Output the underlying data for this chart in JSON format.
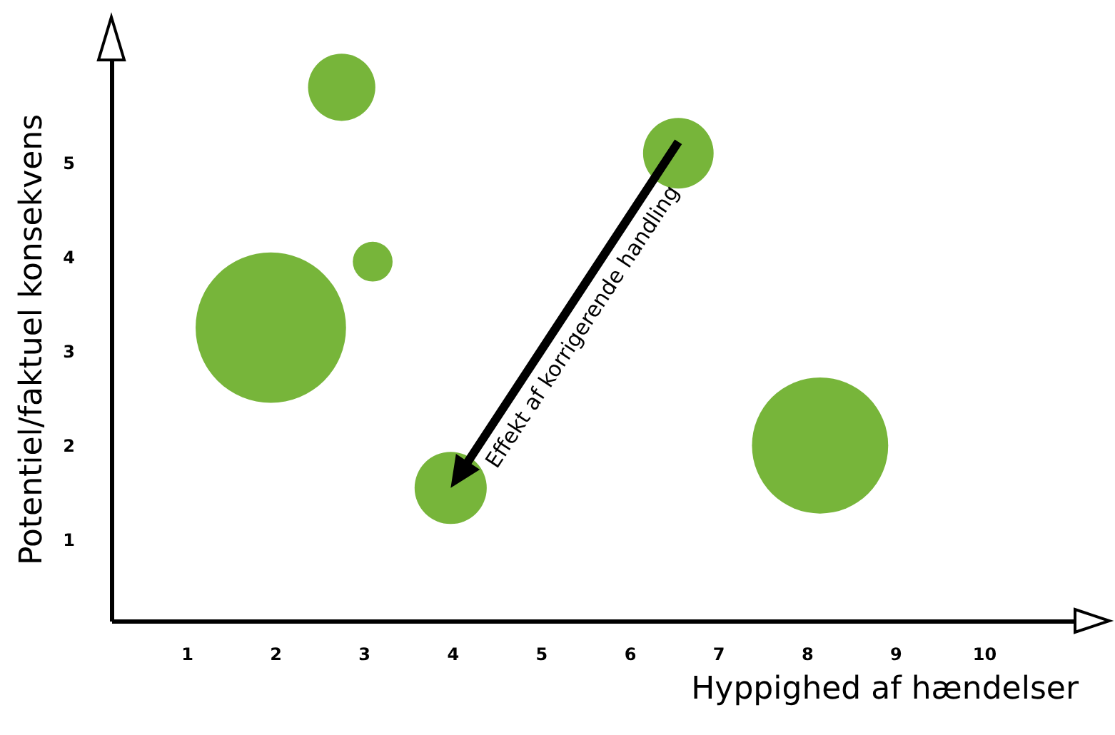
{
  "chart_data": {
    "type": "bubble",
    "xlabel": "Hyppighed af hændelser",
    "ylabel": "Potentiel/faktuel konsekvens",
    "x": [
      2.75,
      6.55,
      3.1,
      1.95,
      8.15,
      3.98
    ],
    "values": [
      5.8,
      5.1,
      3.95,
      3.25,
      2.0,
      1.55
    ],
    "sizes": [
      0.2,
      0.22,
      0.07,
      1,
      0.82,
      0.23
    ],
    "color": "#77b53a",
    "xlim": [
      0.15,
      11.06
    ],
    "ylim": [
      0.14,
      6.12
    ],
    "xticks": [
      1,
      2,
      3,
      4,
      5,
      6,
      7,
      8,
      9,
      10
    ],
    "yticks": [
      1,
      2,
      3,
      4,
      5
    ],
    "annotations": [
      "Effekt af korrigerende handling"
    ],
    "grid": false,
    "legend": false
  }
}
